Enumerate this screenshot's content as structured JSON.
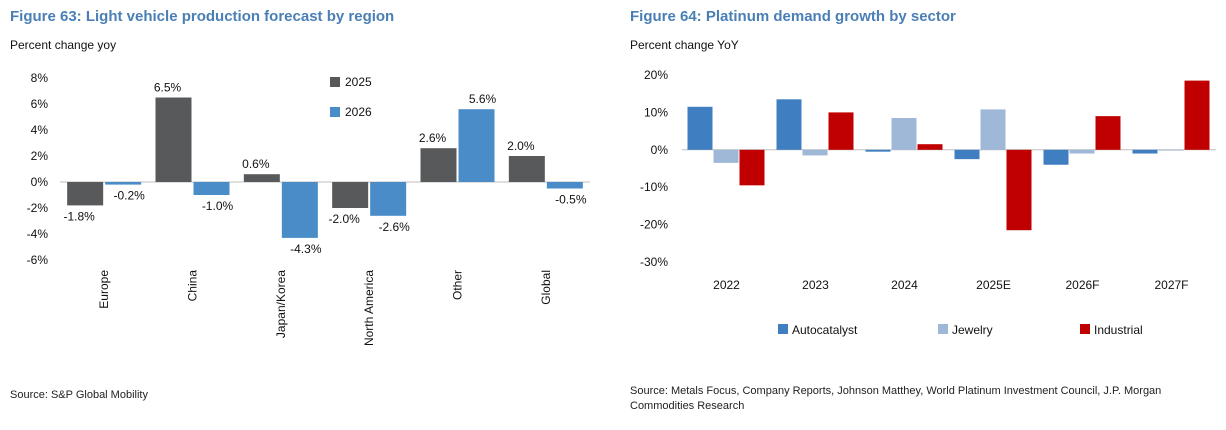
{
  "charts": [
    {
      "title": "Figure 63: Light vehicle production forecast by region",
      "subtitle": "Percent change yoy",
      "source": "Source: S&P Global Mobility"
    },
    {
      "title": "Figure 64: Platinum demand growth by sector",
      "subtitle": "Percent change YoY",
      "source": "Source: Metals Focus, Company Reports, Johnson Matthey, World Platinum Investment Council, J.P. Morgan Commodities Research"
    }
  ],
  "chart_data": [
    {
      "type": "bar",
      "title": "Figure 63: Light vehicle production forecast by region",
      "ylabel": "Percent change yoy",
      "categories": [
        "Europe",
        "China",
        "Japan/Korea",
        "North America",
        "Other",
        "Global"
      ],
      "series": [
        {
          "name": "2025",
          "color": "#58595b",
          "values": [
            -1.8,
            6.5,
            0.6,
            -2.0,
            2.6,
            2.0
          ],
          "labels": [
            "-1.8%",
            "6.5%",
            "0.6%",
            "-2.0%",
            "2.6%",
            "2.0%"
          ]
        },
        {
          "name": "2026",
          "color": "#4a8cc8",
          "values": [
            -0.2,
            -1.0,
            -4.3,
            -2.6,
            5.6,
            -0.5
          ],
          "labels": [
            "-0.2%",
            "-1.0%",
            "-4.3%",
            "-2.6%",
            "5.6%",
            "-0.5%"
          ]
        }
      ],
      "ylim": [
        -6,
        8
      ],
      "yticks": [
        8,
        6,
        4,
        2,
        0,
        -2,
        -4,
        -6
      ],
      "ytick_labels": [
        "8%",
        "6%",
        "4%",
        "2%",
        "0%",
        "-2%",
        "-4%",
        "-6%"
      ],
      "grid": false,
      "legend": "top-center"
    },
    {
      "type": "bar",
      "title": "Figure 64: Platinum demand growth by sector",
      "ylabel": "Percent change YoY",
      "categories": [
        "2022",
        "2023",
        "2024",
        "2025E",
        "2026F",
        "2027F"
      ],
      "series": [
        {
          "name": "Autocatalyst",
          "color": "#3f7fc1",
          "values": [
            11.5,
            13.5,
            -0.5,
            -2.5,
            -4.0,
            -1.0
          ]
        },
        {
          "name": "Jewelry",
          "color": "#9fb8d8",
          "values": [
            -3.5,
            -1.5,
            8.5,
            10.8,
            -1.0,
            0
          ]
        },
        {
          "name": "Industrial",
          "color": "#c00000",
          "values": [
            -9.5,
            10.0,
            1.5,
            -21.5,
            9.0,
            18.5
          ]
        }
      ],
      "ylim": [
        -30,
        20
      ],
      "yticks": [
        20,
        10,
        0,
        -10,
        -20,
        -30
      ],
      "ytick_labels": [
        "20%",
        "10%",
        "0%",
        "-10%",
        "-20%",
        "-30%"
      ],
      "grid": false,
      "legend": "bottom"
    }
  ]
}
